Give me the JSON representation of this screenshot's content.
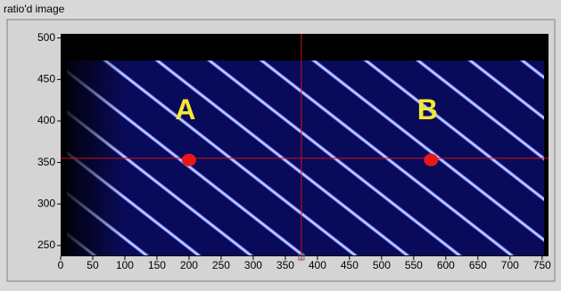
{
  "chart_data": {
    "type": "intensity",
    "title": "ratio'd image",
    "xlim": [
      0,
      760
    ],
    "ylim": [
      237,
      505
    ],
    "xticks": [
      0,
      50,
      100,
      150,
      200,
      250,
      300,
      350,
      400,
      450,
      500,
      550,
      600,
      650,
      700,
      750
    ],
    "yticks": [
      250,
      300,
      350,
      400,
      450,
      500
    ],
    "cursor": {
      "x": 375,
      "y": 355,
      "color": "#d01010"
    },
    "points": [
      {
        "label": "A",
        "x": 200,
        "y": 353
      },
      {
        "label": "B",
        "x": 577,
        "y": 353
      }
    ],
    "point_color": "#e81818",
    "label_color": "#f4e830"
  }
}
